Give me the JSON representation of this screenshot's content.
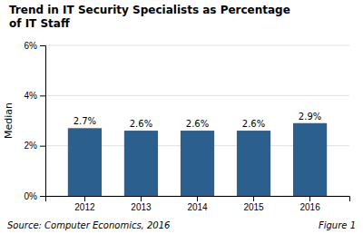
{
  "chart_data": {
    "type": "bar",
    "title": "Trend in IT Security Specialists as Percentage\nof IT Staff",
    "categories": [
      "2012",
      "2013",
      "2014",
      "2015",
      "2016"
    ],
    "values": [
      2.7,
      2.6,
      2.6,
      2.6,
      2.9
    ],
    "value_labels": [
      "2.7%",
      "2.6%",
      "2.6%",
      "2.6%",
      "2.9%"
    ],
    "data_labels": true,
    "color": "#2B5F8E",
    "ylabel": "Median",
    "ylim": [
      0,
      6
    ],
    "yticks": [
      {
        "value": 0,
        "label": "0%"
      },
      {
        "value": 2,
        "label": "2%"
      },
      {
        "value": 4,
        "label": "4%"
      },
      {
        "value": 6,
        "label": "6%"
      }
    ],
    "grid": true,
    "annotations": [
      "Source: Computer Economics, 2016",
      "Figure 1"
    ]
  }
}
